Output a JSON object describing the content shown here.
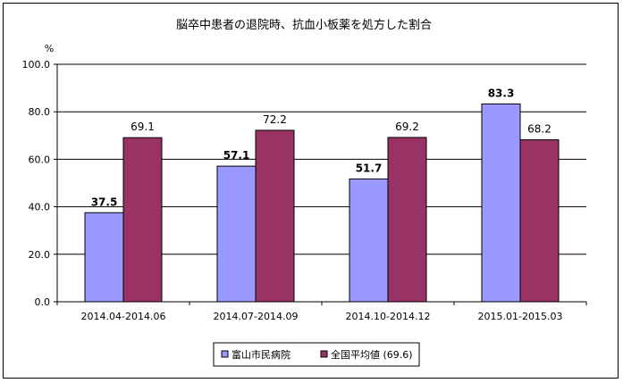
{
  "chart_data": {
    "type": "bar",
    "title": "脳卒中患者の退院時、抗血小板薬を処方した割合",
    "ylabel": "%",
    "ylim": [
      0,
      100
    ],
    "yticks": [
      "0.0",
      "20.0",
      "40.0",
      "60.0",
      "80.0",
      "100.0"
    ],
    "grid": true,
    "legend_position": "bottom",
    "categories": [
      "2014.04-2014.06",
      "2014.07-2014.09",
      "2014.10-2014.12",
      "2015.01-2015.03"
    ],
    "series": [
      {
        "name": "富山市民病院",
        "values": [
          37.5,
          57.1,
          51.7,
          83.3
        ],
        "labels": [
          "37.5",
          "57.1",
          "51.7",
          "83.3"
        ],
        "color": "#9999ff",
        "bold_labels": true
      },
      {
        "name": "全国平均値 (69.6)",
        "values": [
          69.1,
          72.2,
          69.2,
          68.2
        ],
        "labels": [
          "69.1",
          "72.2",
          "69.2",
          "68.2"
        ],
        "color": "#993366",
        "bold_labels": false
      }
    ]
  }
}
